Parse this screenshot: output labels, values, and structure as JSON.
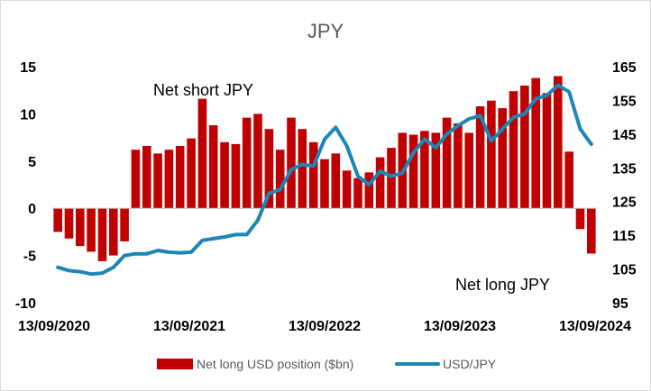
{
  "chart_data": {
    "type": "bar+line",
    "title": "JPY",
    "x_tick_labels": [
      "13/09/2020",
      "13/09/2021",
      "13/09/2022",
      "13/09/2023",
      "13/09/2024"
    ],
    "y_left": {
      "lim": [
        -10,
        15
      ],
      "ticks": [
        "-10",
        "-5",
        "0",
        "5",
        "10",
        "15"
      ]
    },
    "y_right": {
      "lim": [
        95,
        165
      ],
      "ticks": [
        "95",
        "105",
        "115",
        "125",
        "135",
        "145",
        "155",
        "165"
      ]
    },
    "annotations": [
      "Net short JPY",
      "Net long JPY"
    ],
    "grid": false,
    "legend_position": "bottom",
    "series": [
      {
        "name": "Net long USD position ($bn)",
        "type": "bar",
        "axis": "left",
        "color": "#c00000",
        "x": [
          "2020-09",
          "2020-10",
          "2020-11",
          "2020-12",
          "2021-01",
          "2021-02",
          "2021-03",
          "2021-04",
          "2021-05",
          "2021-06",
          "2021-07",
          "2021-08",
          "2021-09",
          "2021-10",
          "2021-11",
          "2021-12",
          "2022-01",
          "2022-02",
          "2022-03",
          "2022-04",
          "2022-05",
          "2022-06",
          "2022-07",
          "2022-08",
          "2022-09",
          "2022-10",
          "2022-11",
          "2022-12",
          "2023-01",
          "2023-02",
          "2023-03",
          "2023-04",
          "2023-05",
          "2023-06",
          "2023-07",
          "2023-08",
          "2023-09",
          "2023-10",
          "2023-11",
          "2023-12",
          "2024-01",
          "2024-02",
          "2024-03",
          "2024-04",
          "2024-05",
          "2024-06",
          "2024-07",
          "2024-08",
          "2024-09"
        ],
        "values": [
          -2.5,
          -3.2,
          -4.0,
          -4.6,
          -5.6,
          -5.0,
          -3.5,
          6.2,
          6.6,
          5.8,
          6.2,
          6.6,
          7.4,
          11.6,
          8.8,
          7.0,
          6.8,
          9.6,
          10.0,
          8.4,
          6.2,
          9.6,
          8.4,
          7.0,
          5.2,
          5.8,
          4.0,
          3.2,
          3.8,
          5.4,
          6.4,
          8.0,
          7.8,
          8.2,
          8.0,
          9.6,
          9.0,
          8.0,
          10.8,
          11.4,
          10.6,
          12.4,
          13.0,
          13.8,
          12.2,
          14.0,
          6.0,
          -2.2,
          -4.8
        ]
      },
      {
        "name": "USD/JPY",
        "type": "line",
        "axis": "right",
        "color": "#1c86b5",
        "x": [
          "2020-09",
          "2020-10",
          "2020-11",
          "2020-12",
          "2021-01",
          "2021-02",
          "2021-03",
          "2021-04",
          "2021-05",
          "2021-06",
          "2021-07",
          "2021-08",
          "2021-09",
          "2021-10",
          "2021-11",
          "2021-12",
          "2022-01",
          "2022-02",
          "2022-03",
          "2022-04",
          "2022-05",
          "2022-06",
          "2022-07",
          "2022-08",
          "2022-09",
          "2022-10",
          "2022-11",
          "2022-12",
          "2023-01",
          "2023-02",
          "2023-03",
          "2023-04",
          "2023-05",
          "2023-06",
          "2023-07",
          "2023-08",
          "2023-09",
          "2023-10",
          "2023-11",
          "2023-12",
          "2024-01",
          "2024-02",
          "2024-03",
          "2024-04",
          "2024-05",
          "2024-06",
          "2024-07",
          "2024-08",
          "2024-09"
        ],
        "values": [
          105.5,
          104.5,
          104.2,
          103.5,
          103.8,
          105.5,
          109.0,
          109.5,
          109.5,
          110.5,
          110.0,
          109.8,
          110.0,
          113.5,
          114.0,
          114.5,
          115.2,
          115.2,
          119.5,
          127.5,
          128.5,
          134.5,
          136.0,
          135.5,
          143.5,
          147.0,
          141.5,
          132.5,
          130.0,
          134.0,
          132.5,
          133.5,
          139.5,
          143.5,
          141.0,
          145.0,
          147.5,
          149.5,
          150.5,
          143.0,
          146.5,
          150.0,
          151.0,
          155.5,
          156.5,
          159.5,
          157.5,
          146.5,
          142.0
        ]
      }
    ]
  }
}
